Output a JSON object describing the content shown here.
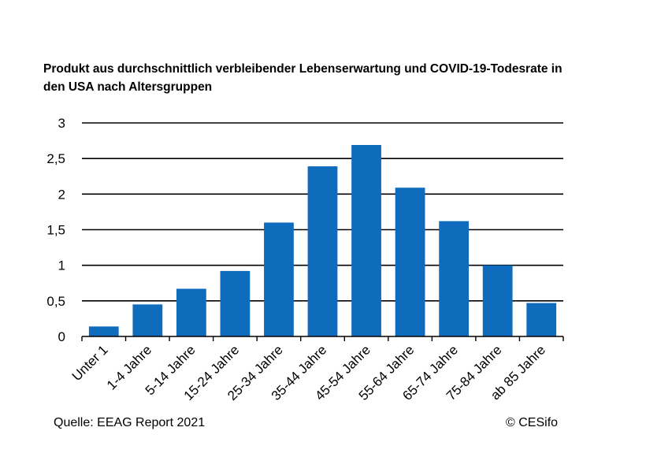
{
  "title_line1": "Produkt aus durchschnittlich verbleibender Lebenserwartung und COVID-19-Todesrate in",
  "title_line2": "den USA nach Altersgruppen",
  "source": "Quelle:  EEAG Report 2021",
  "credit": "© CESifo",
  "colors": {
    "bar": "#0F6CBD",
    "grid": "#000000"
  },
  "chart_data": {
    "type": "bar",
    "title": "Produkt aus durchschnittlich verbleibender Lebenserwartung und COVID-19-Todesrate in den USA nach Altersgruppen",
    "xlabel": "",
    "ylabel": "",
    "categories": [
      "Unter 1",
      "1-4 Jahre",
      "5-14 Jahre",
      "15-24 Jahre",
      "25-34 Jahre",
      "35-44 Jahre",
      "45-54 Jahre",
      "55-64 Jahre",
      "65-74 Jahre",
      "75-84 Jahre",
      "ab 85 Jahre"
    ],
    "values": [
      0.14,
      0.45,
      0.67,
      0.92,
      1.6,
      2.39,
      2.69,
      2.09,
      1.62,
      1.0,
      0.47
    ],
    "ylim": [
      0,
      3
    ],
    "yticks": [
      0,
      0.5,
      1,
      1.5,
      2,
      2.5,
      3
    ],
    "ytick_labels": [
      "0",
      "0,5",
      "1",
      "1,5",
      "2",
      "2,5",
      "3"
    ],
    "grid": true,
    "legend": "none"
  }
}
